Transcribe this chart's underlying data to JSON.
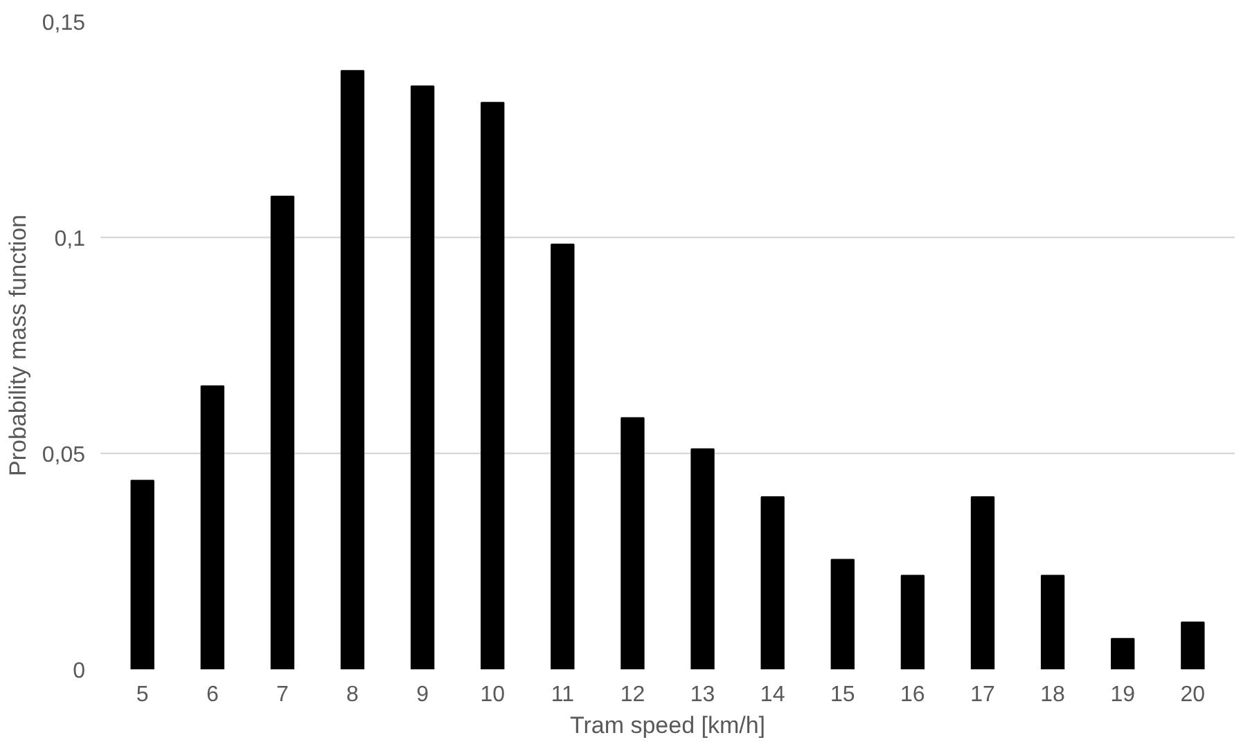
{
  "chart_data": {
    "type": "bar",
    "xlabel": "Tram speed [km/h]",
    "ylabel": "Probability mass function",
    "categories": [
      "5",
      "6",
      "7",
      "8",
      "9",
      "10",
      "11",
      "12",
      "13",
      "14",
      "15",
      "16",
      "17",
      "18",
      "19",
      "20"
    ],
    "values": [
      0.0437,
      0.0656,
      0.1095,
      0.1386,
      0.135,
      0.1312,
      0.0984,
      0.0582,
      0.051,
      0.0399,
      0.0254,
      0.0217,
      0.0399,
      0.0217,
      0.0071,
      0.0109
    ],
    "color": "#000000",
    "ylim": [
      0,
      0.15
    ],
    "yticks": [
      0,
      {
        "value": 0.05,
        "label": "0,05"
      },
      {
        "value": 0.1,
        "label": "0,1"
      },
      {
        "value": 0.15,
        "label": "0,15"
      }
    ],
    "grid": "y"
  }
}
